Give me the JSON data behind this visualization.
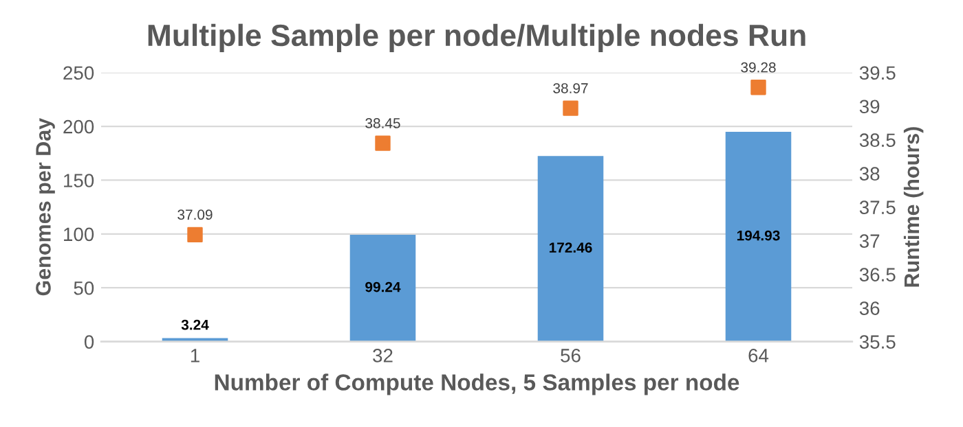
{
  "chart_data": {
    "type": "bar",
    "title": "Multiple Sample per node/Multiple nodes Run",
    "xlabel": "Number of Compute Nodes, 5 Samples per node",
    "ylabel": "Genomes per Day",
    "y2label": "Runtime (hours)",
    "categories": [
      "1",
      "32",
      "56",
      "64"
    ],
    "series": [
      {
        "color": "#5b9bd5",
        "values": [
          3.24,
          99.24,
          172.46,
          194.93
        ]
      },
      {
        "type": "scatter",
        "axis": "y2",
        "color": "#ed7d31",
        "marker": "square",
        "values": [
          37.09,
          38.45,
          38.97,
          39.28
        ]
      }
    ],
    "ylim": [
      0,
      250
    ],
    "yticks": [
      0,
      50,
      100,
      150,
      200,
      250
    ],
    "y2lim": [
      35.5,
      39.5
    ],
    "y2ticks": [
      35.5,
      36,
      36.5,
      37,
      37.5,
      38,
      38.5,
      39,
      39.5
    ],
    "grid": "y",
    "data_labels": true,
    "legend": false
  }
}
